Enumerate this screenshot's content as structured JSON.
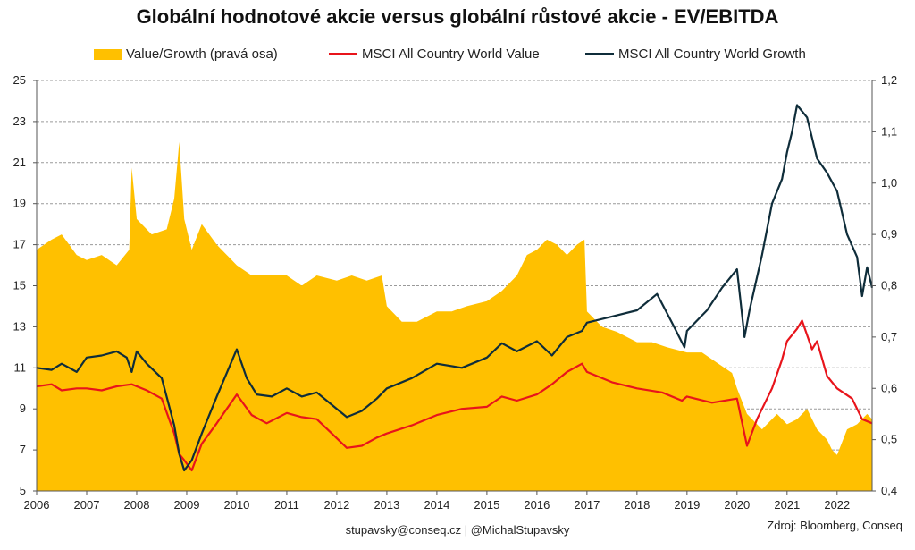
{
  "chart_data": {
    "type": "area+line",
    "title": "Globální hodnotové akcie versus globální růstové akcie - EV/EBITDA",
    "legend": [
      {
        "name": "Value/Growth (pravá osa)",
        "color": "#FFC000",
        "kind": "area"
      },
      {
        "name": "MSCI All Country World Value",
        "color": "#E8141B",
        "kind": "line"
      },
      {
        "name": "MSCI All Country World Growth",
        "color": "#0F2D3A",
        "kind": "line"
      }
    ],
    "legend_position": "top",
    "x_ticks": [
      "2006",
      "2007",
      "2008",
      "2009",
      "2010",
      "2011",
      "2012",
      "2013",
      "2014",
      "2015",
      "2016",
      "2017",
      "2018",
      "2019",
      "2020",
      "2021",
      "2022"
    ],
    "x_range": [
      2006.0,
      2022.7
    ],
    "left_axis": {
      "ylim": [
        5,
        25
      ],
      "ticks": [
        "5",
        "7",
        "9",
        "11",
        "13",
        "15",
        "17",
        "19",
        "21",
        "23",
        "25"
      ]
    },
    "right_axis": {
      "ylim": [
        0.4,
        1.2
      ],
      "ticks": [
        "0,4",
        "0,5",
        "0,6",
        "0,7",
        "0,8",
        "0,9",
        "1,0",
        "1,1",
        "1,2"
      ]
    },
    "grid": "horizontal dashed",
    "series": [
      {
        "name": "Value/Growth (pravá osa)",
        "axis": "right",
        "x": [
          2006.0,
          2006.3,
          2006.5,
          2006.8,
          2007.0,
          2007.3,
          2007.6,
          2007.85,
          2007.9,
          2008.0,
          2008.3,
          2008.6,
          2008.75,
          2008.85,
          2008.95,
          2009.1,
          2009.3,
          2009.6,
          2010.0,
          2010.3,
          2010.6,
          2011.0,
          2011.3,
          2011.6,
          2012.0,
          2012.3,
          2012.6,
          2012.9,
          2013.0,
          2013.3,
          2013.6,
          2014.0,
          2014.3,
          2014.6,
          2015.0,
          2015.3,
          2015.6,
          2015.8,
          2016.0,
          2016.2,
          2016.4,
          2016.6,
          2016.8,
          2016.95,
          2017.0,
          2017.3,
          2017.6,
          2018.0,
          2018.3,
          2018.6,
          2019.0,
          2019.3,
          2019.6,
          2019.9,
          2020.0,
          2020.2,
          2020.5,
          2020.8,
          2021.0,
          2021.2,
          2021.4,
          2021.6,
          2021.8,
          2021.9,
          2022.0,
          2022.2,
          2022.4,
          2022.6,
          2022.7
        ],
        "values": [
          0.87,
          0.89,
          0.9,
          0.86,
          0.85,
          0.86,
          0.84,
          0.87,
          1.03,
          0.93,
          0.9,
          0.91,
          0.97,
          1.08,
          0.93,
          0.87,
          0.92,
          0.88,
          0.84,
          0.82,
          0.82,
          0.82,
          0.8,
          0.82,
          0.81,
          0.82,
          0.81,
          0.82,
          0.76,
          0.73,
          0.73,
          0.75,
          0.75,
          0.76,
          0.77,
          0.79,
          0.82,
          0.86,
          0.87,
          0.89,
          0.88,
          0.86,
          0.88,
          0.89,
          0.75,
          0.72,
          0.71,
          0.69,
          0.69,
          0.68,
          0.67,
          0.67,
          0.65,
          0.63,
          0.6,
          0.55,
          0.52,
          0.55,
          0.53,
          0.54,
          0.56,
          0.52,
          0.5,
          0.48,
          0.47,
          0.52,
          0.53,
          0.55,
          0.54
        ]
      },
      {
        "name": "MSCI All Country World Value",
        "axis": "left",
        "x": [
          2006.0,
          2006.3,
          2006.5,
          2006.8,
          2007.0,
          2007.3,
          2007.6,
          2007.9,
          2008.2,
          2008.5,
          2008.75,
          2008.85,
          2008.95,
          2009.1,
          2009.3,
          2009.6,
          2010.0,
          2010.3,
          2010.6,
          2011.0,
          2011.3,
          2011.6,
          2011.9,
          2012.2,
          2012.5,
          2012.8,
          2013.0,
          2013.5,
          2014.0,
          2014.5,
          2015.0,
          2015.3,
          2015.6,
          2016.0,
          2016.3,
          2016.6,
          2016.9,
          2017.0,
          2017.5,
          2018.0,
          2018.5,
          2018.9,
          2019.0,
          2019.5,
          2020.0,
          2020.2,
          2020.4,
          2020.7,
          2020.9,
          2021.0,
          2021.2,
          2021.3,
          2021.5,
          2021.6,
          2021.8,
          2022.0,
          2022.3,
          2022.5,
          2022.7
        ],
        "values": [
          10.1,
          10.2,
          9.9,
          10.0,
          10.0,
          9.9,
          10.1,
          10.2,
          9.9,
          9.5,
          7.8,
          6.8,
          6.5,
          6.0,
          7.3,
          8.3,
          9.7,
          8.7,
          8.3,
          8.8,
          8.6,
          8.5,
          7.8,
          7.1,
          7.2,
          7.6,
          7.8,
          8.2,
          8.7,
          9.0,
          9.1,
          9.6,
          9.4,
          9.7,
          10.2,
          10.8,
          11.2,
          10.8,
          10.3,
          10.0,
          9.8,
          9.4,
          9.6,
          9.3,
          9.5,
          7.2,
          8.5,
          10.0,
          11.4,
          12.3,
          12.9,
          13.3,
          11.9,
          12.3,
          10.6,
          10.0,
          9.5,
          8.5,
          8.3
        ]
      },
      {
        "name": "MSCI All Country World Growth",
        "axis": "left",
        "x": [
          2006.0,
          2006.3,
          2006.5,
          2006.8,
          2007.0,
          2007.3,
          2007.6,
          2007.8,
          2007.9,
          2008.0,
          2008.2,
          2008.5,
          2008.75,
          2008.85,
          2008.95,
          2009.1,
          2009.3,
          2009.6,
          2010.0,
          2010.2,
          2010.4,
          2010.7,
          2011.0,
          2011.3,
          2011.6,
          2011.9,
          2012.2,
          2012.5,
          2012.8,
          2013.0,
          2013.5,
          2014.0,
          2014.5,
          2015.0,
          2015.3,
          2015.6,
          2016.0,
          2016.3,
          2016.6,
          2016.9,
          2017.0,
          2017.5,
          2018.0,
          2018.4,
          2018.7,
          2018.95,
          2019.0,
          2019.4,
          2019.7,
          2020.0,
          2020.15,
          2020.25,
          2020.5,
          2020.7,
          2020.9,
          2021.0,
          2021.1,
          2021.2,
          2021.4,
          2021.6,
          2021.8,
          2022.0,
          2022.2,
          2022.4,
          2022.5,
          2022.6,
          2022.7
        ],
        "values": [
          11.0,
          10.9,
          11.2,
          10.8,
          11.5,
          11.6,
          11.8,
          11.5,
          10.8,
          11.8,
          11.2,
          10.5,
          8.2,
          6.8,
          6.0,
          6.5,
          7.8,
          9.6,
          11.9,
          10.5,
          9.7,
          9.6,
          10.0,
          9.6,
          9.8,
          9.2,
          8.6,
          8.9,
          9.5,
          10.0,
          10.5,
          11.2,
          11.0,
          11.5,
          12.2,
          11.8,
          12.3,
          11.6,
          12.5,
          12.8,
          13.2,
          13.5,
          13.8,
          14.6,
          13.2,
          12.0,
          12.8,
          13.8,
          14.9,
          15.8,
          12.5,
          13.8,
          16.5,
          19.0,
          20.2,
          21.5,
          22.5,
          23.8,
          23.2,
          21.2,
          20.5,
          19.6,
          17.5,
          16.4,
          14.5,
          15.9,
          14.9
        ]
      }
    ],
    "footer_center": "stupavsky@conseq.cz   |   @MichalStupavsky",
    "footer_right": "Zdroj: Bloomberg, Conseq"
  }
}
